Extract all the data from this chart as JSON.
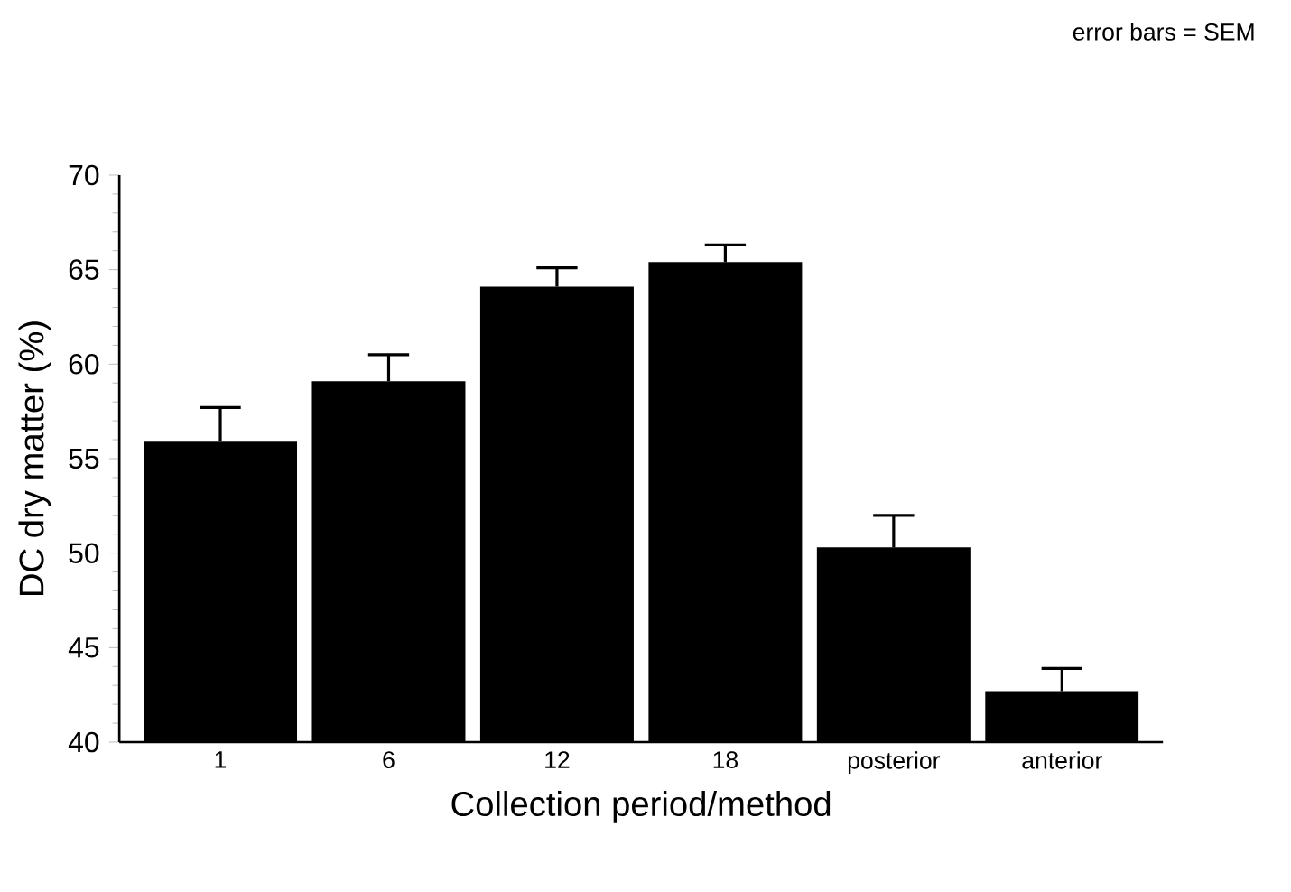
{
  "chart_data": {
    "type": "bar",
    "xlabel": "Collection period/method",
    "ylabel": "DC dry matter (%)",
    "annotations": [
      "error bars = SEM"
    ],
    "categories": [
      "1",
      "6",
      "12",
      "18",
      "posterior",
      "anterior"
    ],
    "values": [
      55.9,
      59.1,
      64.1,
      65.4,
      50.3,
      42.7
    ],
    "errors": [
      1.8,
      1.4,
      1.0,
      0.9,
      1.7,
      1.2
    ],
    "color": "#000000",
    "ylim": [
      40,
      70
    ],
    "yticks": [
      40,
      45,
      50,
      55,
      60,
      65,
      70
    ],
    "grid": false
  }
}
